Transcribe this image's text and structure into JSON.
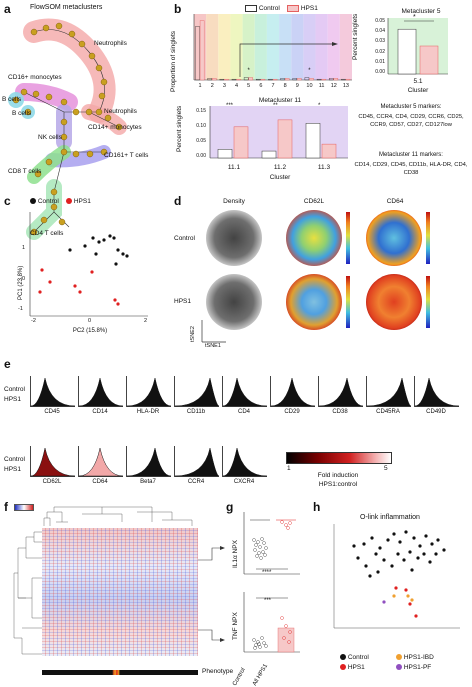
{
  "panels": {
    "a": {
      "letter": "a",
      "title": "FlowSOM metaclusters",
      "labels": [
        "Neutrophils",
        "CD16+ monocytes",
        "B cells",
        "B cells",
        "Neutrophils",
        "CD14+ monocytes",
        "NK cells",
        "CD8 T cells",
        "CD161+ T cells",
        "CD4 T cells"
      ],
      "colors": {
        "neutro": "#f2a0a0",
        "mono16": "#e28ad6",
        "bcell": "#8fd9e8",
        "mono14": "#f2a0a0",
        "nk": "#b6a8e8",
        "cd8": "#8ee08e",
        "cd161": "#a8a0ee",
        "cd4": "#a8e6b8",
        "node": "#c8a020"
      }
    },
    "b": {
      "letter": "b",
      "legend": [
        "Control",
        "HPS1"
      ],
      "ylabel": "Proportion of singlets",
      "categories": [
        "1",
        "2",
        "3",
        "4",
        "5",
        "6",
        "7",
        "8",
        "9",
        "10",
        "11",
        "12",
        "13"
      ],
      "control": [
        0.65,
        0.02,
        0.01,
        0.01,
        0.03,
        0.01,
        0.01,
        0.02,
        0.02,
        0.03,
        0.01,
        0.02,
        0.01
      ],
      "hps1": [
        0.72,
        0.02,
        0.01,
        0.01,
        0.03,
        0.01,
        0.01,
        0.02,
        0.02,
        0.02,
        0.01,
        0.02,
        0.01
      ],
      "sig": [
        {
          "idx": 4,
          "label": "*"
        },
        {
          "idx": 9,
          "label": "*"
        }
      ],
      "meta5": {
        "title": "Metacluster 5",
        "ylabel": "Percent singlets",
        "yticks": [
          "0.00",
          "0.01",
          "0.02",
          "0.03",
          "0.04",
          "0.05"
        ],
        "xlabel": "Cluster",
        "tick": "5.1",
        "sig": "*",
        "control": 0.04,
        "hps1": 0.025
      },
      "meta11": {
        "title": "Metacluster 11",
        "ylabel": "Percent singlets",
        "yticks": [
          "0.00",
          "0.05",
          "0.10",
          "0.15"
        ],
        "xlabel": "Cluster",
        "ticks": [
          "11.1",
          "11.2",
          "11.3"
        ],
        "sig": [
          "***",
          "**",
          "*"
        ],
        "control": [
          0.025,
          0.02,
          0.1
        ],
        "hps1": [
          0.09,
          0.11,
          0.04
        ]
      },
      "markers5_title": "Metacluster 5 markers:",
      "markers5": "CD45, CCR4, CD4, CD29, CCR6, CD25, CCR9, CD57, CD27, CD127low",
      "markers11_title": "Metacluster 11 markers:",
      "markers11": "CD14, CD29, CD45, CD11b, HLA-DR, CD4, CD38"
    },
    "c": {
      "letter": "c",
      "legend": [
        "Control",
        "HPS1"
      ],
      "xlabel": "PC2 (15.8%)",
      "ylabel": "PC1 (23.8%)",
      "xticks": [
        "-2",
        "0",
        "2"
      ],
      "yticks": [
        "-1",
        "0",
        "1"
      ]
    },
    "d": {
      "letter": "d",
      "cols": [
        "Density",
        "CD62L",
        "CD64"
      ],
      "rows": [
        "Control",
        "HPS1"
      ],
      "axis_x": "tSNE1",
      "axis_y": "tSNE2"
    },
    "e": {
      "letter": "e",
      "row1": [
        "CD45",
        "CD14",
        "HLA-DR",
        "CD11b",
        "CD4",
        "CD29",
        "CD38",
        "CD45RA",
        "CD49D"
      ],
      "row2": [
        "CD62L",
        "CD64",
        "Beta7",
        "CCR4",
        "CXCR4"
      ],
      "row_labels": [
        "Control",
        "HPS1"
      ],
      "scale_min": "1",
      "scale_max": "5",
      "scale_title": "Fold induction",
      "scale_subtitle": "HPS1:control"
    },
    "f": {
      "letter": "f",
      "footer": "Phenotype"
    },
    "g": {
      "letter": "g",
      "ylabel_top": "IL1α NPX",
      "ylabel_bottom": "TNF NPX",
      "sig_top": "****",
      "sig_bottom": "***",
      "xticks": [
        "Control",
        "All HPS1"
      ]
    },
    "h": {
      "letter": "h",
      "title": "O-link inflammation",
      "legend": [
        "Control",
        "HPS1",
        "HPS1-IBD",
        "HPS1-PF"
      ],
      "legend_colors": [
        "#111111",
        "#e02020",
        "#f0a030",
        "#9050c0"
      ]
    }
  }
}
